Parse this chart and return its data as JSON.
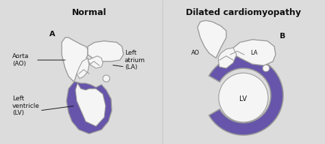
{
  "bg_color": "#dcdcdc",
  "title_normal": "Normal",
  "title_dilated": "Dilated cardiomyopathy",
  "label_A": "A",
  "label_B": "B",
  "label_aorta": "Aorta\n(AO)",
  "label_la": "Left\natrium\n(LA)",
  "label_lv": "Left\nventricle\n(LV)",
  "label_ao_small": "AO",
  "label_la_small": "LA",
  "label_lv_small": "LV",
  "purple_fill": "#6655aa",
  "outline_color": "#999999",
  "white_fill": "#f5f5f5",
  "bg_light": "#e8e8e0",
  "title_fontsize": 9,
  "label_fontsize": 6.5,
  "small_label_fontsize": 6,
  "text_color": "#111111"
}
